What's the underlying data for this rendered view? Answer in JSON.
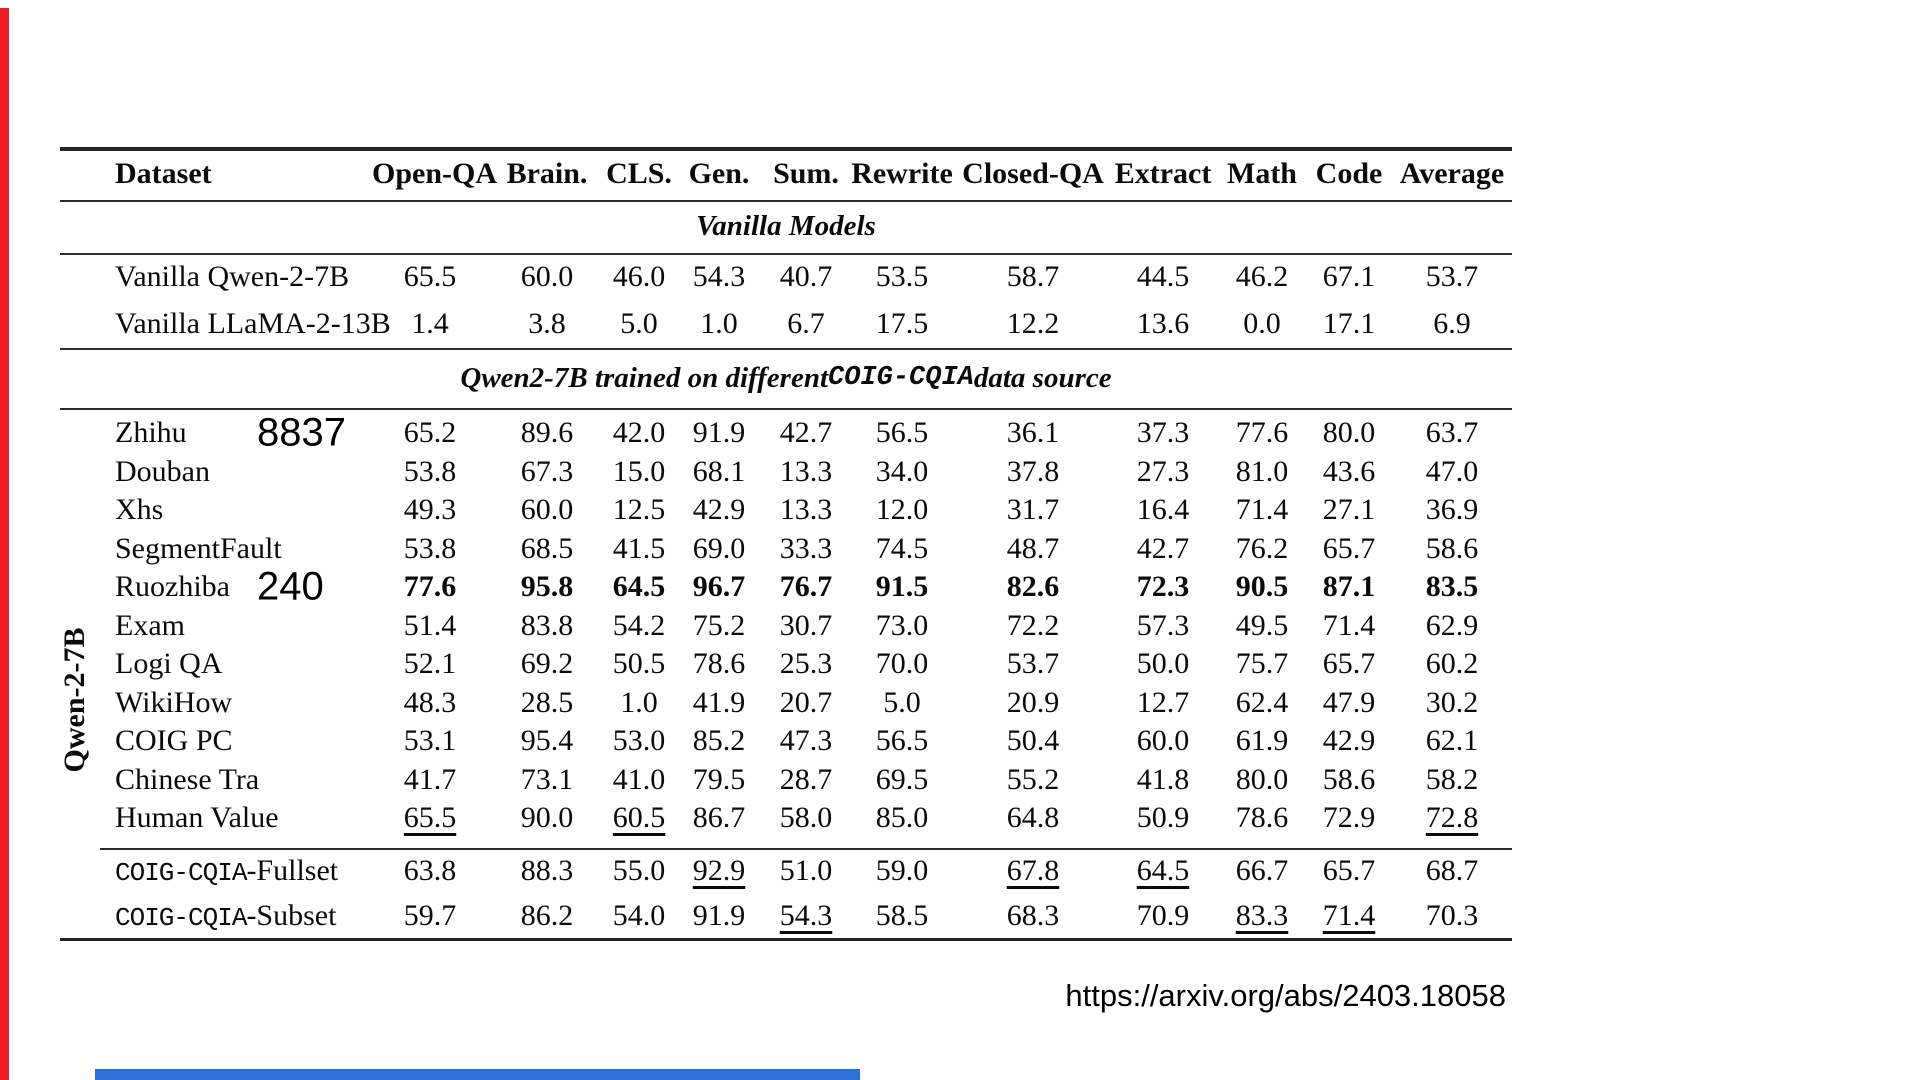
{
  "page": {
    "url_caption": "https://arxiv.org/abs/2403.18058",
    "accent_colors": {
      "red_bar": "#ec1c24",
      "blue_bar": "#2e6fd8"
    }
  },
  "chart_data": {
    "type": "table",
    "columns": [
      "Dataset",
      "Open-QA",
      "Brain.",
      "CLS.",
      "Gen.",
      "Sum.",
      "Rewrite",
      "Closed-QA",
      "Extract",
      "Math",
      "Code",
      "Average"
    ],
    "vanilla_section": {
      "title": "Vanilla Models",
      "rows": [
        {
          "label": "Vanilla Qwen-2-7B",
          "values": [
            "65.5",
            "60.0",
            "46.0",
            "54.3",
            "40.7",
            "53.5",
            "58.7",
            "44.5",
            "46.2",
            "67.1",
            "53.7"
          ]
        },
        {
          "label": "Vanilla LLaMA-2-13B",
          "values": [
            "1.4",
            "3.8",
            "5.0",
            "1.0",
            "6.7",
            "17.5",
            "12.2",
            "13.6",
            "0.0",
            "17.1",
            "6.9"
          ]
        }
      ]
    },
    "trained_section": {
      "title_pre": "Qwen2-7B trained on different ",
      "title_mono": "COIG-CQIA",
      "title_post": " data source",
      "group_label": "Qwen-2-7B",
      "rows": [
        {
          "label": "Zhihu",
          "annotation": "8837",
          "values": [
            "65.2",
            "89.6",
            "42.0",
            "91.9",
            "42.7",
            "56.5",
            "36.1",
            "37.3",
            "77.6",
            "80.0",
            "63.7"
          ]
        },
        {
          "label": "Douban",
          "values": [
            "53.8",
            "67.3",
            "15.0",
            "68.1",
            "13.3",
            "34.0",
            "37.8",
            "27.3",
            "81.0",
            "43.6",
            "47.0"
          ]
        },
        {
          "label": "Xhs",
          "values": [
            "49.3",
            "60.0",
            "12.5",
            "42.9",
            "13.3",
            "12.0",
            "31.7",
            "16.4",
            "71.4",
            "27.1",
            "36.9"
          ]
        },
        {
          "label": "SegmentFault",
          "values": [
            "53.8",
            "68.5",
            "41.5",
            "69.0",
            "33.3",
            "74.5",
            "48.7",
            "42.7",
            "76.2",
            "65.7",
            "58.6"
          ]
        },
        {
          "label": "Ruozhiba",
          "annotation": "240",
          "bold": true,
          "values": [
            "77.6",
            "95.8",
            "64.5",
            "96.7",
            "76.7",
            "91.5",
            "82.6",
            "72.3",
            "90.5",
            "87.1",
            "83.5"
          ]
        },
        {
          "label": "Exam",
          "values": [
            "51.4",
            "83.8",
            "54.2",
            "75.2",
            "30.7",
            "73.0",
            "72.2",
            "57.3",
            "49.5",
            "71.4",
            "62.9"
          ]
        },
        {
          "label": "Logi QA",
          "values": [
            "52.1",
            "69.2",
            "50.5",
            "78.6",
            "25.3",
            "70.0",
            "53.7",
            "50.0",
            "75.7",
            "65.7",
            "60.2"
          ]
        },
        {
          "label": "WikiHow",
          "values": [
            "48.3",
            "28.5",
            "1.0",
            "41.9",
            "20.7",
            "5.0",
            "20.9",
            "12.7",
            "62.4",
            "47.9",
            "30.2"
          ]
        },
        {
          "label": "COIG PC",
          "values": [
            "53.1",
            "95.4",
            "53.0",
            "85.2",
            "47.3",
            "56.5",
            "50.4",
            "60.0",
            "61.9",
            "42.9",
            "62.1"
          ]
        },
        {
          "label": "Chinese Tra",
          "values": [
            "41.7",
            "73.1",
            "41.0",
            "79.5",
            "28.7",
            "69.5",
            "55.2",
            "41.8",
            "80.0",
            "58.6",
            "58.2"
          ]
        },
        {
          "label": "Human Value",
          "underline": [
            0,
            2,
            10
          ],
          "values": [
            "65.5",
            "90.0",
            "60.5",
            "86.7",
            "58.0",
            "85.0",
            "64.8",
            "50.9",
            "78.6",
            "72.9",
            "72.8"
          ]
        }
      ]
    },
    "summary_rows": [
      {
        "label_mono": "COIG-CQIA",
        "label_suffix": "-Fullset",
        "underline": [
          3,
          6,
          7
        ],
        "values": [
          "63.8",
          "88.3",
          "55.0",
          "92.9",
          "51.0",
          "59.0",
          "67.8",
          "64.5",
          "66.7",
          "65.7",
          "68.7"
        ]
      },
      {
        "label_mono": "COIG-CQIA",
        "label_suffix": "-Subset",
        "underline": [
          4,
          8,
          9
        ],
        "values": [
          "59.7",
          "86.2",
          "54.0",
          "91.9",
          "54.3",
          "58.5",
          "68.3",
          "70.9",
          "83.3",
          "71.4",
          "70.3"
        ]
      }
    ]
  }
}
